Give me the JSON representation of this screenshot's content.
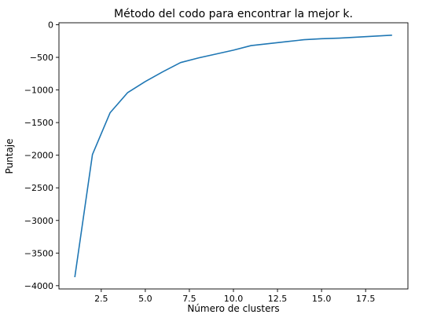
{
  "chart_data": {
    "type": "line",
    "title": "Método del codo para encontrar la mejor k.",
    "xlabel": "Número de clusters",
    "ylabel": "Puntaje",
    "xlim": [
      0.1,
      19.9
    ],
    "ylim": [
      -4050,
      30
    ],
    "xticks": [
      2.5,
      5.0,
      7.5,
      10.0,
      12.5,
      15.0,
      17.5
    ],
    "xtick_labels": [
      "2.5",
      "5.0",
      "7.5",
      "10.0",
      "12.5",
      "15.0",
      "17.5"
    ],
    "yticks": [
      0,
      -500,
      -1000,
      -1500,
      -2000,
      -2500,
      -3000,
      -3500,
      -4000
    ],
    "ytick_labels": [
      "0",
      "−500",
      "−1000",
      "−1500",
      "−2000",
      "−2500",
      "−3000",
      "−3500",
      "−4000"
    ],
    "grid": false,
    "series": [
      {
        "color": "#1f77b4",
        "x": [
          1,
          2,
          3,
          4,
          5,
          6,
          7,
          8,
          9,
          10,
          11,
          12,
          13,
          14,
          15,
          16,
          17,
          18,
          19
        ],
        "y": [
          -3870,
          -1990,
          -1350,
          -1040,
          -870,
          -720,
          -580,
          -510,
          -450,
          -390,
          -320,
          -290,
          -260,
          -230,
          -215,
          -205,
          -190,
          -175,
          -160
        ]
      }
    ]
  }
}
